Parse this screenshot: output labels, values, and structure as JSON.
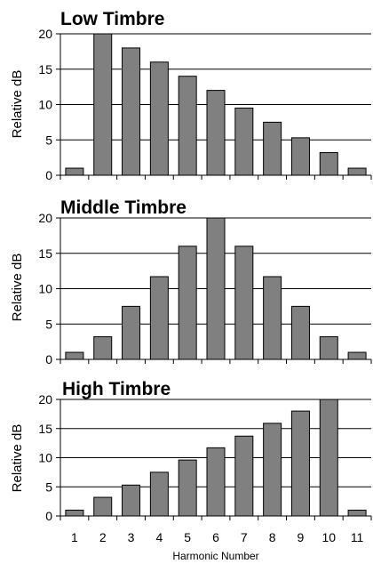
{
  "chart_data": [
    {
      "type": "bar",
      "title": "Low Timbre",
      "ylabel": "Relative dB",
      "xlabel": "",
      "categories": [
        "1",
        "2",
        "3",
        "4",
        "5",
        "6",
        "7",
        "8",
        "9",
        "10",
        "11"
      ],
      "values": [
        1,
        20,
        18,
        16,
        14,
        12,
        9.5,
        7.5,
        5.3,
        3.2,
        1
      ],
      "ylim": [
        0,
        20
      ],
      "yticks": [
        "0",
        "5",
        "10",
        "15",
        "20"
      ],
      "grid": true,
      "bar_color": "#808080"
    },
    {
      "type": "bar",
      "title": "Middle Timbre",
      "ylabel": "Relative dB",
      "xlabel": "",
      "categories": [
        "1",
        "2",
        "3",
        "4",
        "5",
        "6",
        "7",
        "8",
        "9",
        "10",
        "11"
      ],
      "values": [
        1,
        3.2,
        7.5,
        11.7,
        16,
        20,
        16,
        11.7,
        7.5,
        3.2,
        1
      ],
      "ylim": [
        0,
        20
      ],
      "yticks": [
        "0",
        "5",
        "10",
        "15",
        "20"
      ],
      "grid": true,
      "bar_color": "#808080"
    },
    {
      "type": "bar",
      "title": "High Timbre",
      "ylabel": "Relative dB",
      "xlabel": "Harmonic Number",
      "categories": [
        "1",
        "2",
        "3",
        "4",
        "5",
        "6",
        "7",
        "8",
        "9",
        "10",
        "11"
      ],
      "values": [
        1,
        3.2,
        5.3,
        7.5,
        9.6,
        11.7,
        13.7,
        15.9,
        18,
        20,
        1
      ],
      "ylim": [
        0,
        20
      ],
      "yticks": [
        "0",
        "5",
        "10",
        "15",
        "20"
      ],
      "grid": true,
      "bar_color": "#808080"
    }
  ]
}
